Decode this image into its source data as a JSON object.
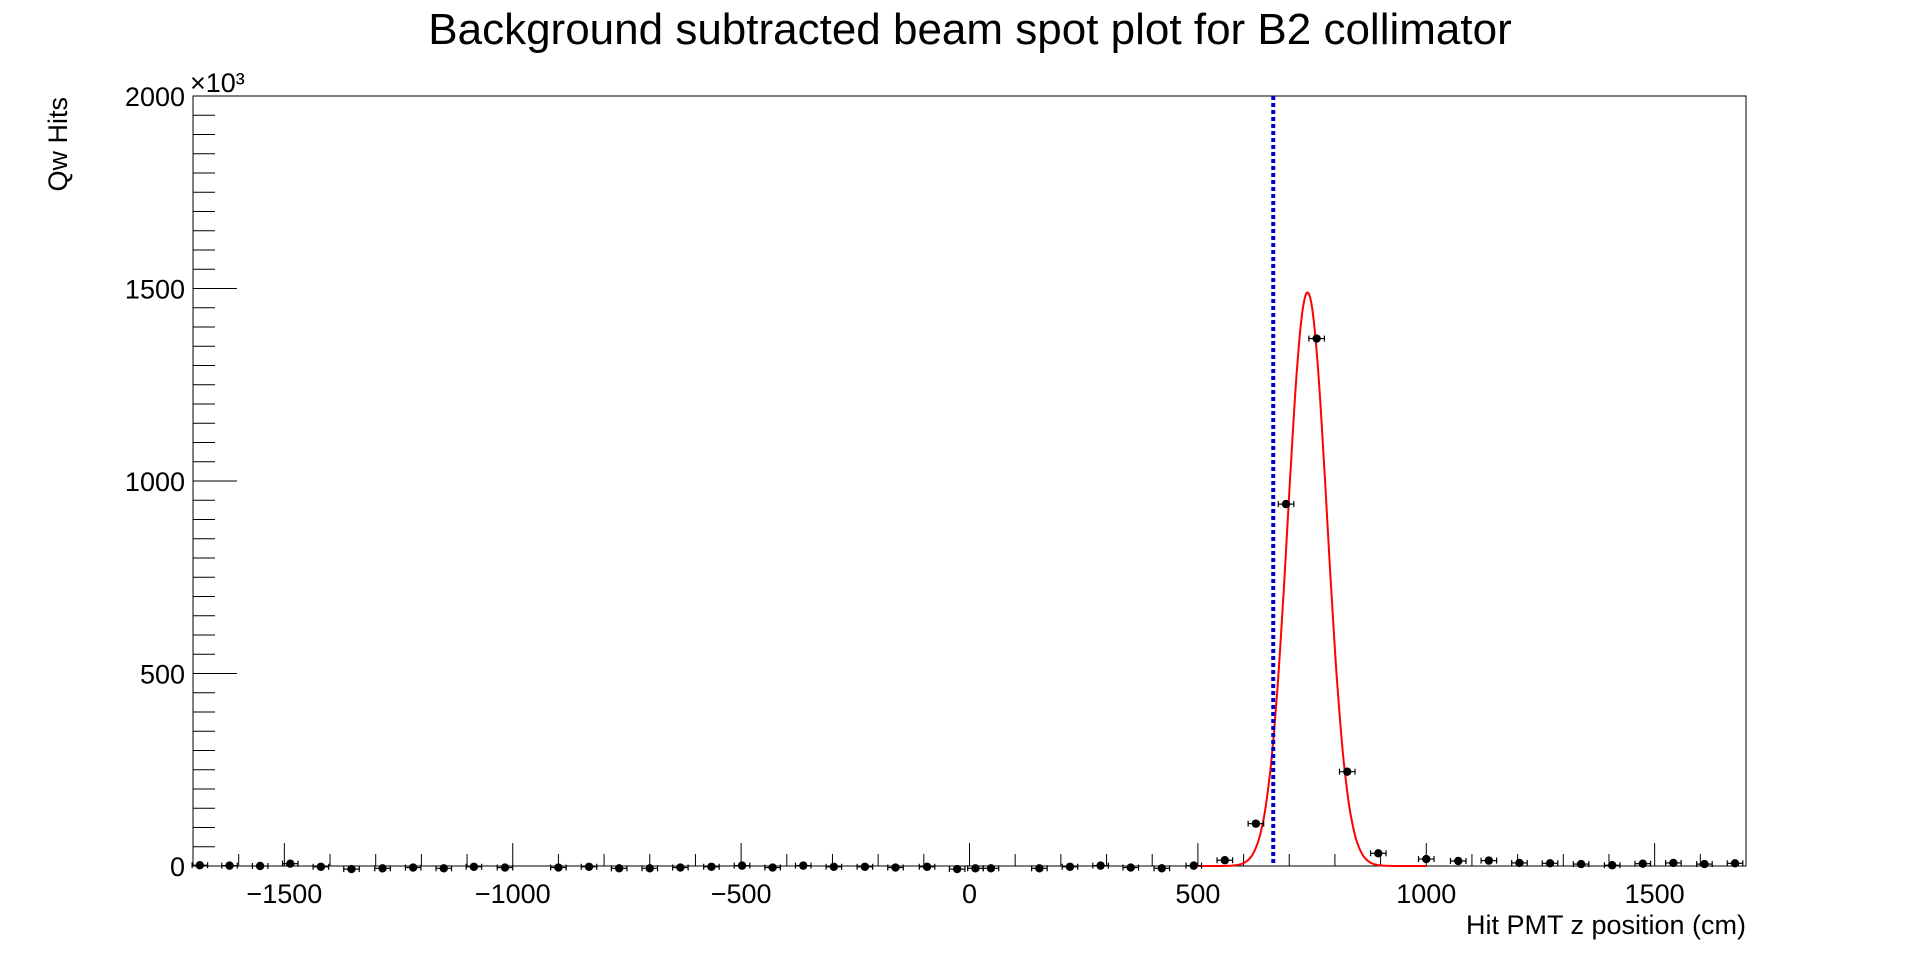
{
  "chart_data": {
    "type": "scatter",
    "title": "Background subtracted beam spot plot for B2 collimator",
    "xlabel": "Hit PMT z position (cm)",
    "ylabel": "Qw Hits",
    "y_multiplier_label": "×10³",
    "xlim": [
      -1700,
      1700
    ],
    "ylim": [
      0,
      2000
    ],
    "x_ticks": [
      -1500,
      -1000,
      -500,
      0,
      500,
      1000,
      1500
    ],
    "y_ticks": [
      0,
      500,
      1000,
      1500,
      2000
    ],
    "grid": false,
    "legend": "none",
    "series": [
      {
        "style": "points-with-x-error",
        "x_error": 17,
        "x": [
          -1685,
          -1620,
          -1553,
          -1487,
          -1420,
          -1353,
          -1285,
          -1218,
          -1151,
          -1085,
          -1017,
          -900,
          -833,
          -767,
          -700,
          -633,
          -565,
          -498,
          -431,
          -364,
          -297,
          -229,
          -162,
          -93,
          -27,
          13,
          47,
          153,
          220,
          287,
          353,
          421,
          491,
          559,
          627,
          693,
          760,
          827,
          895,
          1000,
          1070,
          1137,
          1204,
          1271,
          1339,
          1407,
          1474,
          1541,
          1609,
          1676
        ],
        "y": [
          2,
          1,
          0,
          6,
          -2,
          -8,
          -6,
          -4,
          -6,
          -2,
          -4,
          -4,
          -2,
          -6,
          -6,
          -4,
          -2,
          1,
          -4,
          1,
          -2,
          -2,
          -4,
          -2,
          -8,
          -6,
          -6,
          -6,
          -2,
          1,
          -4,
          -6,
          1,
          15,
          110,
          940,
          1370,
          245,
          33,
          18,
          13,
          14,
          8,
          7,
          5,
          2,
          6,
          8,
          5,
          7
        ]
      },
      {
        "style": "fit-curve",
        "color": "#ff0000",
        "model": "gaussian",
        "x_range": [
          500,
          1000
        ],
        "amplitude": 1490,
        "mean": 740,
        "sigma": 43
      }
    ],
    "annotations": [
      {
        "type": "vertical-dashed-line",
        "x": 665,
        "color": "#0000cc"
      }
    ]
  }
}
